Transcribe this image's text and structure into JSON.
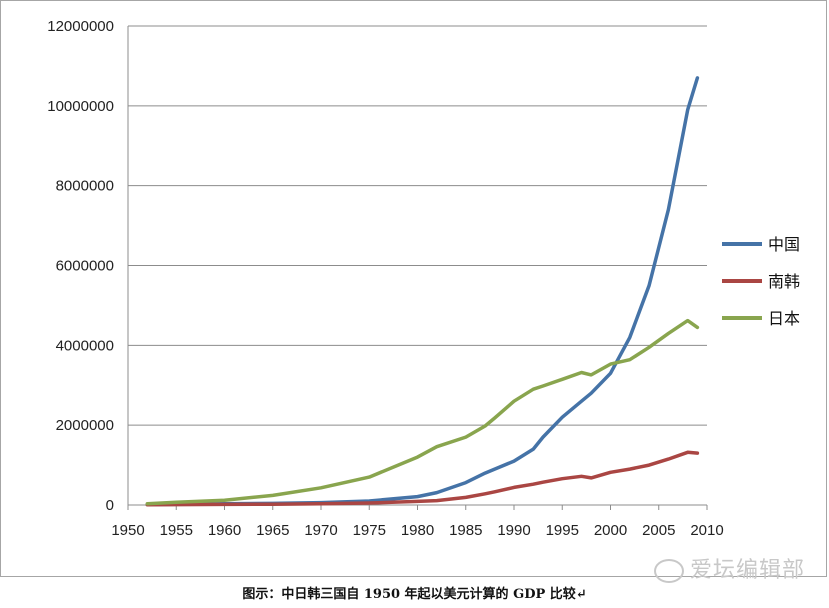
{
  "chart_data": {
    "type": "line",
    "title": "",
    "xlabel": "",
    "ylabel": "",
    "xlim": [
      1950,
      2010
    ],
    "ylim": [
      0,
      12000000
    ],
    "x_ticks": [
      "1950",
      "1955",
      "1960",
      "1965",
      "1970",
      "1975",
      "1980",
      "1985",
      "1990",
      "1995",
      "2000",
      "2005",
      "2010"
    ],
    "y_ticks": [
      "0",
      "2000000",
      "4000000",
      "6000000",
      "8000000",
      "10000000",
      "12000000"
    ],
    "grid": "horizontal",
    "legend_position": "right",
    "x": [
      1952,
      1955,
      1960,
      1965,
      1970,
      1975,
      1980,
      1982,
      1985,
      1987,
      1988,
      1990,
      1992,
      1993,
      1995,
      1997,
      1998,
      2000,
      2002,
      2004,
      2006,
      2008,
      2009
    ],
    "series": [
      {
        "name": "中国",
        "color": "#4573a7",
        "values": [
          10000,
          20000,
          30000,
          40000,
          60000,
          100000,
          210000,
          310000,
          560000,
          800000,
          900000,
          1100000,
          1400000,
          1700000,
          2200000,
          2600000,
          2800000,
          3300000,
          4200000,
          5500000,
          7400000,
          9900000,
          10700000
        ]
      },
      {
        "name": "南韩",
        "color": "#aa4643",
        "values": [
          5000,
          10000,
          15000,
          20000,
          30000,
          50000,
          90000,
          110000,
          190000,
          280000,
          330000,
          440000,
          520000,
          570000,
          660000,
          720000,
          680000,
          820000,
          900000,
          1000000,
          1150000,
          1320000,
          1300000
        ]
      },
      {
        "name": "日本",
        "color": "#89a54e",
        "values": [
          30000,
          70000,
          120000,
          240000,
          430000,
          700000,
          1200000,
          1460000,
          1700000,
          1980000,
          2180000,
          2600000,
          2900000,
          2980000,
          3150000,
          3320000,
          3260000,
          3530000,
          3640000,
          3950000,
          4300000,
          4620000,
          4450000
        ]
      }
    ]
  },
  "caption": "图示：中日韩三国自 1950 年起以美元计算的 GDP 比较↵",
  "watermark": "爱坛编辑部"
}
